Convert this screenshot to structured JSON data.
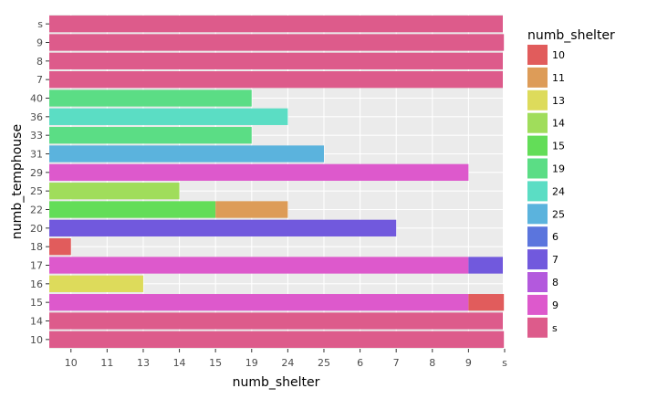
{
  "chart_data": {
    "type": "bar",
    "orientation": "horizontal",
    "stacked": true,
    "xlabel": "numb_shelter",
    "ylabel": "numb_temphouse",
    "x_categories": [
      "10",
      "11",
      "13",
      "14",
      "15",
      "19",
      "24",
      "25",
      "6",
      "7",
      "8",
      "9",
      "s"
    ],
    "y_categories": [
      "10",
      "14",
      "15",
      "16",
      "17",
      "18",
      "20",
      "22",
      "25",
      "29",
      "31",
      "33",
      "36",
      "40",
      "7",
      "8",
      "9",
      "s"
    ],
    "legend": {
      "title": "numb_shelter",
      "position": "right",
      "entries": [
        {
          "label": "10",
          "color": "#e15c5c"
        },
        {
          "label": "11",
          "color": "#dd9c58"
        },
        {
          "label": "13",
          "color": "#dddb5b"
        },
        {
          "label": "14",
          "color": "#a0dd5b"
        },
        {
          "label": "15",
          "color": "#63dd58"
        },
        {
          "label": "19",
          "color": "#5bdd85"
        },
        {
          "label": "24",
          "color": "#5bddc4"
        },
        {
          "label": "25",
          "color": "#5bb3dd"
        },
        {
          "label": "6",
          "color": "#5b75dd"
        },
        {
          "label": "7",
          "color": "#7159dd"
        },
        {
          "label": "8",
          "color": "#b359dd"
        },
        {
          "label": "9",
          "color": "#dd59cc"
        },
        {
          "label": "s",
          "color": "#dd5b8b"
        }
      ]
    },
    "bars": [
      {
        "y": "s",
        "segments": [
          {
            "shelter": "s",
            "x_end": "s"
          }
        ]
      },
      {
        "y": "9",
        "segments": [
          {
            "shelter": "s",
            "x_end": "9.5"
          }
        ]
      },
      {
        "y": "8",
        "segments": [
          {
            "shelter": "s",
            "x_end": "s"
          }
        ]
      },
      {
        "y": "7",
        "segments": [
          {
            "shelter": "s",
            "x_end": "s"
          }
        ]
      },
      {
        "y": "40",
        "segments": [
          {
            "shelter": "19",
            "x_end": "19"
          }
        ]
      },
      {
        "y": "36",
        "segments": [
          {
            "shelter": "24",
            "x_end": "24"
          }
        ]
      },
      {
        "y": "33",
        "segments": [
          {
            "shelter": "19",
            "x_end": "19"
          }
        ]
      },
      {
        "y": "31",
        "segments": [
          {
            "shelter": "25",
            "x_end": "25"
          }
        ]
      },
      {
        "y": "29",
        "segments": [
          {
            "shelter": "9",
            "x_end": "9"
          }
        ]
      },
      {
        "y": "25",
        "segments": [
          {
            "shelter": "14",
            "x_end": "14"
          }
        ]
      },
      {
        "y": "22",
        "segments": [
          {
            "shelter": "15",
            "x_end": "15"
          },
          {
            "shelter": "11",
            "x_end": "24"
          }
        ]
      },
      {
        "y": "20",
        "segments": [
          {
            "shelter": "7",
            "x_end": "7"
          }
        ]
      },
      {
        "y": "18",
        "segments": [
          {
            "shelter": "10",
            "x_end": "10"
          }
        ]
      },
      {
        "y": "17",
        "segments": [
          {
            "shelter": "9",
            "x_end": "9"
          },
          {
            "shelter": "7",
            "x_end": "s"
          }
        ]
      },
      {
        "y": "16",
        "segments": [
          {
            "shelter": "13",
            "x_end": "13"
          }
        ]
      },
      {
        "y": "15",
        "segments": [
          {
            "shelter": "9",
            "x_end": "9"
          },
          {
            "shelter": "10",
            "x_end": "9.5"
          }
        ]
      },
      {
        "y": "14",
        "segments": [
          {
            "shelter": "s",
            "x_end": "s"
          }
        ]
      },
      {
        "y": "10",
        "segments": [
          {
            "shelter": "s",
            "x_end": "9.5"
          },
          {
            "shelter": "6",
            "x_end": "s"
          }
        ]
      }
    ],
    "grid": true
  }
}
